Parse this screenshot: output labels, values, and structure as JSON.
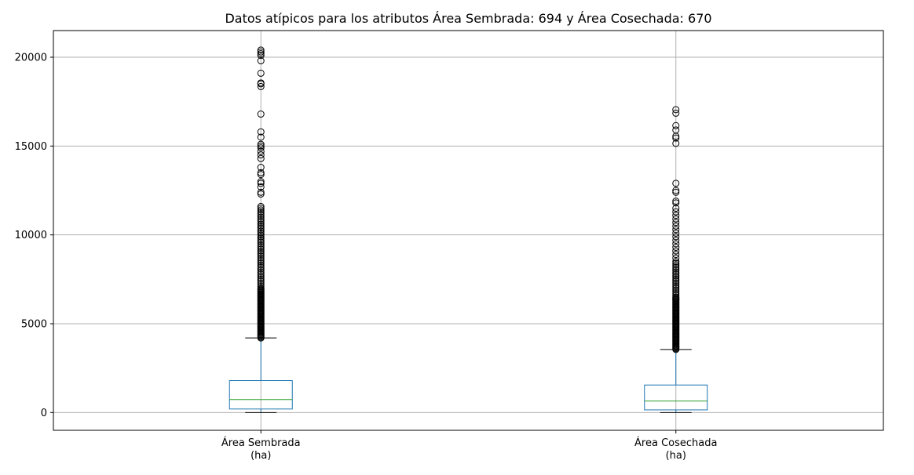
{
  "chart_data": {
    "type": "boxplot",
    "title": "Datos atípicos para los atributos Área Sembrada: 694 y Área Cosechada: 670",
    "xlabel": "",
    "ylabel": "",
    "ylim": [
      -1000,
      21500
    ],
    "yticks": [
      0,
      5000,
      10000,
      15000,
      20000
    ],
    "ytick_labels": [
      "0",
      "5000",
      "10000",
      "15000",
      "20000"
    ],
    "grid": true,
    "colors": {
      "box": "#1f77b4",
      "median": "#2ca02c",
      "flier": "#000000",
      "grid": "#b0b0b0"
    },
    "categories": [
      {
        "line1": "Área Sembrada",
        "line2": "(ha)"
      },
      {
        "line1": "Área Cosechada",
        "line2": "(ha)"
      }
    ],
    "series": [
      {
        "q1": 200,
        "median": 730,
        "q3": 1800,
        "whisker_low": 0,
        "whisker_high": 4200,
        "fliers": [
          4200,
          4250,
          4300,
          4350,
          4400,
          4450,
          4500,
          4550,
          4600,
          4650,
          4700,
          4750,
          4800,
          4850,
          4900,
          4950,
          5000,
          5050,
          5100,
          5150,
          5200,
          5250,
          5300,
          5350,
          5400,
          5450,
          5500,
          5550,
          5600,
          5650,
          5700,
          5750,
          5800,
          5850,
          5900,
          5950,
          6000,
          6050,
          6100,
          6150,
          6200,
          6250,
          6300,
          6350,
          6400,
          6450,
          6500,
          6550,
          6600,
          6650,
          6700,
          6750,
          6800,
          6850,
          6900,
          6950,
          7000,
          7100,
          7200,
          7300,
          7400,
          7500,
          7600,
          7700,
          7800,
          7900,
          8000,
          8100,
          8200,
          8300,
          8400,
          8500,
          8600,
          8700,
          8800,
          8900,
          9000,
          9100,
          9200,
          9300,
          9400,
          9500,
          9600,
          9700,
          9800,
          9900,
          10000,
          10100,
          10200,
          10300,
          10400,
          10500,
          10600,
          10700,
          10800,
          10900,
          11000,
          11100,
          11200,
          11300,
          11400,
          11500,
          11600,
          12300,
          12400,
          12700,
          12900,
          13000,
          13400,
          13500,
          13800,
          14300,
          14500,
          14700,
          14900,
          15000,
          15100,
          15500,
          15800,
          16800,
          18350,
          18500,
          18550,
          19100,
          19800,
          20100,
          20200,
          20300,
          20400
        ]
      },
      {
        "q1": 150,
        "median": 650,
        "q3": 1550,
        "whisker_low": 0,
        "whisker_high": 3550,
        "fliers": [
          3550,
          3600,
          3650,
          3700,
          3750,
          3800,
          3850,
          3900,
          3950,
          4000,
          4050,
          4100,
          4150,
          4200,
          4250,
          4300,
          4350,
          4400,
          4450,
          4500,
          4550,
          4600,
          4650,
          4700,
          4750,
          4800,
          4850,
          4900,
          4950,
          5000,
          5050,
          5100,
          5150,
          5200,
          5250,
          5300,
          5350,
          5400,
          5450,
          5500,
          5550,
          5600,
          5650,
          5700,
          5750,
          5800,
          5850,
          5900,
          5950,
          6000,
          6050,
          6100,
          6150,
          6200,
          6250,
          6300,
          6350,
          6400,
          6450,
          6500,
          6600,
          6700,
          6800,
          6900,
          7000,
          7100,
          7200,
          7300,
          7400,
          7500,
          7600,
          7700,
          7800,
          7900,
          8000,
          8100,
          8200,
          8300,
          8400,
          8500,
          8700,
          8900,
          9100,
          9300,
          9500,
          9700,
          9900,
          10100,
          10300,
          10500,
          10700,
          10900,
          11100,
          11300,
          11500,
          11800,
          11900,
          12400,
          12500,
          12900,
          15150,
          15450,
          15550,
          15900,
          16150,
          16850,
          17050
        ]
      }
    ]
  }
}
